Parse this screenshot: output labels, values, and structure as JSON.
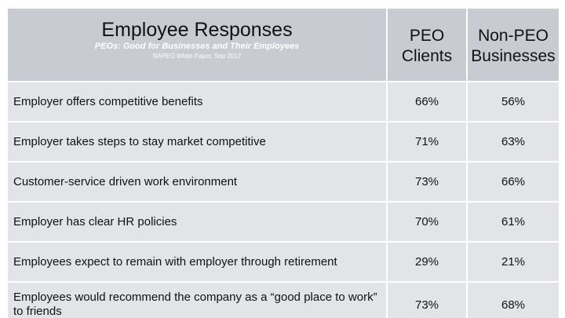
{
  "header": {
    "title": "Employee Responses",
    "subtitle": "PEOs: Good for Businesses and Their Employees",
    "source": "NAPEO White Paper, Sep 2017",
    "col_peo_line1": "PEO",
    "col_peo_line2": "Clients",
    "col_nonpeo_line1": "Non-PEO",
    "col_nonpeo_line2": "Businesses"
  },
  "rows": [
    {
      "label": "Employer offers competitive benefits",
      "peo": "66%",
      "nonpeo": "56%"
    },
    {
      "label": "Employer takes steps to stay market competitive",
      "peo": "71%",
      "nonpeo": "63%"
    },
    {
      "label": "Customer-service driven work environment",
      "peo": "73%",
      "nonpeo": "66%"
    },
    {
      "label": "Employer has clear HR policies",
      "peo": "70%",
      "nonpeo": "61%"
    },
    {
      "label": "Employees expect to remain with employer through retirement",
      "peo": "29%",
      "nonpeo": "21%"
    },
    {
      "label": "Employees would recommend the company as a “good place to work” to friends",
      "peo": "73%",
      "nonpeo": "68%"
    }
  ]
}
